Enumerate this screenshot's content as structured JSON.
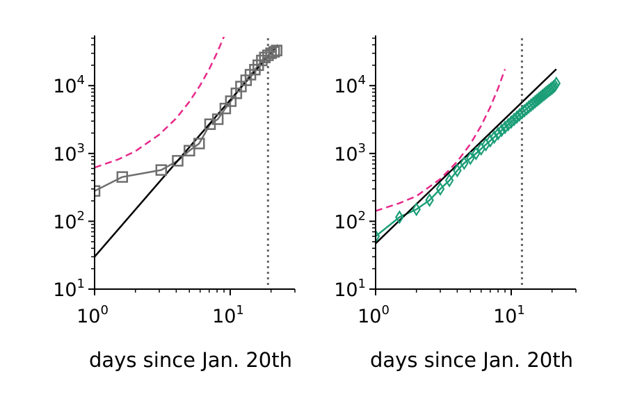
{
  "figure": {
    "background": "#ffffff",
    "axis_color": "#000000"
  },
  "chart_data": [
    {
      "type": "scatter",
      "title": "",
      "xlabel": "days since Jan. 20th",
      "ylabel": "",
      "xscale": "log",
      "yscale": "log",
      "xlim": [
        1,
        30
      ],
      "ylim": [
        10,
        50000
      ],
      "x_ticks": [
        {
          "value": 1,
          "label_base": "10",
          "label_exp": "0"
        },
        {
          "value": 10,
          "label_base": "10",
          "label_exp": "1"
        }
      ],
      "y_ticks": [
        {
          "value": 10,
          "label_base": "10",
          "label_exp": "1"
        },
        {
          "value": 100,
          "label_base": "10",
          "label_exp": "2"
        },
        {
          "value": 1000,
          "label_base": "10",
          "label_exp": "3"
        },
        {
          "value": 10000,
          "label_base": "10",
          "label_exp": "4"
        }
      ],
      "grid": false,
      "series": [
        {
          "kind": "markers-line",
          "marker": "square",
          "color": "#6e6e6e",
          "x": [
            1,
            1.6,
            3.1,
            4.1,
            5.0,
            5.9,
            7.1,
            8.1,
            9.2,
            10.1,
            11.1,
            12.0,
            13.1,
            14.1,
            15.2,
            16.1,
            17.1,
            18.0,
            19.0,
            20.0,
            21.1,
            22.0
          ],
          "y": [
            280,
            450,
            570,
            780,
            1100,
            1400,
            2700,
            3200,
            4600,
            5900,
            7700,
            9700,
            12000,
            14500,
            17200,
            20000,
            23500,
            26000,
            28000,
            30000,
            31500,
            33000
          ]
        },
        {
          "kind": "line",
          "style": "solid",
          "color": "#000000",
          "x": [
            1,
            22.5
          ],
          "y": [
            30,
            40000
          ]
        },
        {
          "kind": "line",
          "style": "dashed",
          "color": "#e7298a",
          "x": [
            1,
            1.5,
            2,
            3,
            4,
            5,
            6,
            7,
            8,
            9
          ],
          "y": [
            620,
            820,
            1080,
            1900,
            3300,
            5800,
            10100,
            17500,
            30500,
            53000
          ]
        },
        {
          "kind": "vline",
          "style": "dotted",
          "color": "#666666",
          "x": 19
        }
      ]
    },
    {
      "type": "scatter",
      "title": "",
      "xlabel": "days since Jan. 20th",
      "ylabel": "",
      "xscale": "log",
      "yscale": "log",
      "xlim": [
        1,
        30
      ],
      "ylim": [
        10,
        50000
      ],
      "x_ticks": [
        {
          "value": 1,
          "label_base": "10",
          "label_exp": "0"
        },
        {
          "value": 10,
          "label_base": "10",
          "label_exp": "1"
        }
      ],
      "y_ticks": [
        {
          "value": 10,
          "label_base": "10",
          "label_exp": "1"
        },
        {
          "value": 100,
          "label_base": "10",
          "label_exp": "2"
        },
        {
          "value": 1000,
          "label_base": "10",
          "label_exp": "3"
        },
        {
          "value": 10000,
          "label_base": "10",
          "label_exp": "4"
        }
      ],
      "grid": false,
      "series": [
        {
          "kind": "markers-line",
          "marker": "diamond",
          "color": "#1b9e77",
          "x": [
            1,
            1.5,
            2,
            2.5,
            3,
            3.5,
            4,
            4.5,
            5,
            5.5,
            6,
            6.5,
            7,
            7.5,
            8,
            8.5,
            9,
            9.5,
            10,
            10.5,
            11,
            11.5,
            12,
            12.5,
            13,
            13.5,
            14,
            14.5,
            15,
            15.5,
            16,
            16.5,
            17,
            17.5,
            18,
            18.5,
            19,
            19.5,
            20,
            20.5,
            21,
            21.5
          ],
          "y": [
            60,
            115,
            150,
            205,
            300,
            400,
            560,
            720,
            850,
            1000,
            1170,
            1350,
            1540,
            1740,
            1960,
            2190,
            2420,
            2660,
            2910,
            3170,
            3430,
            3700,
            3980,
            4260,
            4550,
            4850,
            5150,
            5460,
            5780,
            6100,
            6420,
            6760,
            7100,
            7450,
            7800,
            8150,
            8500,
            8850,
            9200,
            9600,
            10000,
            10800
          ]
        },
        {
          "kind": "line",
          "style": "solid",
          "color": "#000000",
          "x": [
            1,
            21.5
          ],
          "y": [
            47,
            17500
          ]
        },
        {
          "kind": "line",
          "style": "dashed",
          "color": "#e7298a",
          "x": [
            1,
            1.5,
            2,
            3,
            4,
            5,
            6,
            7,
            8,
            9
          ],
          "y": [
            142,
            185,
            235,
            420,
            760,
            1380,
            2560,
            4800,
            9100,
            17500
          ]
        },
        {
          "kind": "vline",
          "style": "dotted",
          "color": "#666666",
          "x": 12
        }
      ]
    }
  ]
}
